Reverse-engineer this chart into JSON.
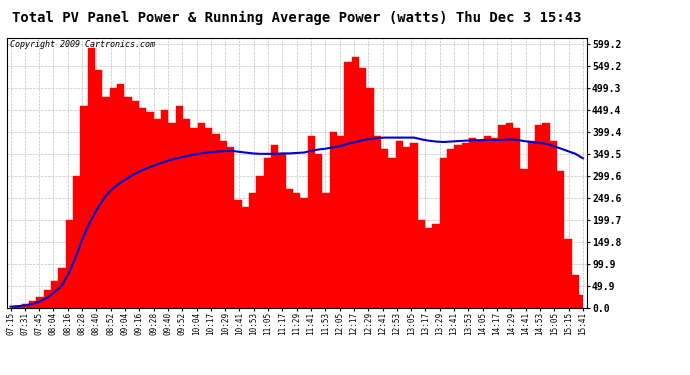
{
  "title": "Total PV Panel Power & Running Average Power (watts) Thu Dec 3 15:43",
  "copyright": "Copyright 2009 Cartronics.com",
  "y_ticks": [
    0.0,
    49.9,
    99.9,
    149.8,
    199.7,
    249.6,
    299.6,
    349.5,
    399.4,
    449.4,
    499.3,
    549.2,
    599.2
  ],
  "y_max": 615,
  "y_min": 0,
  "bg_color": "#ffffff",
  "fill_color": "#ff0000",
  "avg_color": "#0000cc",
  "grid_color": "#b0b0b0",
  "x_labels": [
    "07:15",
    "07:31",
    "07:45",
    "08:04",
    "08:16",
    "08:28",
    "08:40",
    "08:52",
    "09:04",
    "09:16",
    "09:28",
    "09:40",
    "09:52",
    "10:04",
    "10:17",
    "10:29",
    "10:41",
    "10:53",
    "11:05",
    "11:17",
    "11:29",
    "11:41",
    "11:53",
    "12:05",
    "12:17",
    "12:29",
    "12:41",
    "12:53",
    "13:05",
    "13:17",
    "13:29",
    "13:41",
    "13:53",
    "14:05",
    "14:17",
    "14:29",
    "14:41",
    "14:53",
    "15:05",
    "15:15",
    "15:41"
  ],
  "pv_data": [
    2,
    3,
    8,
    15,
    25,
    40,
    60,
    90,
    200,
    300,
    460,
    590,
    540,
    480,
    500,
    510,
    480,
    470,
    455,
    445,
    430,
    450,
    420,
    460,
    430,
    410,
    420,
    410,
    395,
    380,
    365,
    245,
    230,
    260,
    300,
    340,
    370,
    350,
    270,
    260,
    250,
    390,
    350,
    260,
    400,
    390,
    560,
    570,
    545,
    500,
    390,
    360,
    340,
    380,
    365,
    375,
    200,
    180,
    190,
    340,
    360,
    370,
    375,
    385,
    380,
    390,
    385,
    415,
    420,
    410,
    315,
    380,
    415,
    420,
    380,
    310,
    155,
    75,
    28
  ],
  "avg_data": [
    2,
    3,
    5,
    8,
    14,
    22,
    35,
    50,
    80,
    120,
    165,
    200,
    230,
    255,
    272,
    285,
    295,
    305,
    313,
    320,
    326,
    332,
    337,
    341,
    345,
    348,
    351,
    353,
    355,
    356,
    357,
    355,
    353,
    351,
    350,
    350,
    350,
    351,
    351,
    352,
    353,
    357,
    360,
    362,
    365,
    368,
    373,
    377,
    381,
    384,
    386,
    387,
    387,
    387,
    387,
    387,
    383,
    380,
    378,
    377,
    378,
    379,
    380,
    381,
    381,
    382,
    381,
    382,
    383,
    382,
    379,
    377,
    375,
    373,
    368,
    362,
    356,
    350,
    340
  ],
  "title_fontsize": 10,
  "copyright_fontsize": 6,
  "tick_fontsize": 7,
  "xtick_fontsize": 5.5
}
